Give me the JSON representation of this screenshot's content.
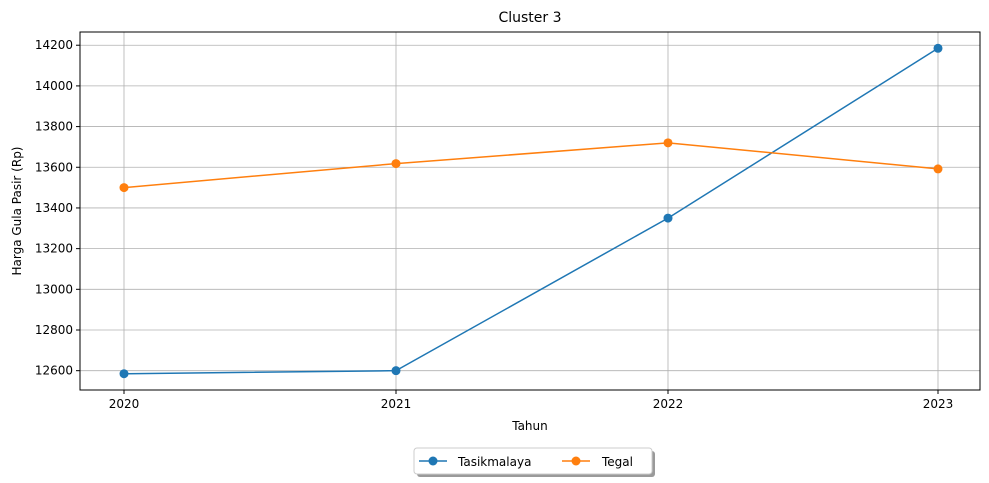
{
  "chart_data": {
    "type": "line",
    "title": "Cluster 3",
    "xlabel": "Tahun",
    "ylabel": "Harga Gula Pasir (Rp)",
    "categories": [
      "2020",
      "2021",
      "2022",
      "2023"
    ],
    "ylim": [
      12505,
      14265
    ],
    "yticks": [
      12600,
      12800,
      13000,
      13200,
      13400,
      13600,
      13800,
      14000,
      14200
    ],
    "ytick_labels": [
      "12600",
      "12800",
      "13000",
      "13200",
      "13400",
      "13600",
      "13800",
      "14000",
      "14200"
    ],
    "grid": true,
    "legend_position": "bottom-center",
    "series": [
      {
        "name": "Tasikmalaya",
        "color": "#1f77b4",
        "values": [
          12585,
          12600,
          13350,
          14185
        ]
      },
      {
        "name": "Tegal",
        "color": "#ff7f0e",
        "values": [
          13500,
          13618,
          13720,
          13592
        ]
      }
    ]
  }
}
